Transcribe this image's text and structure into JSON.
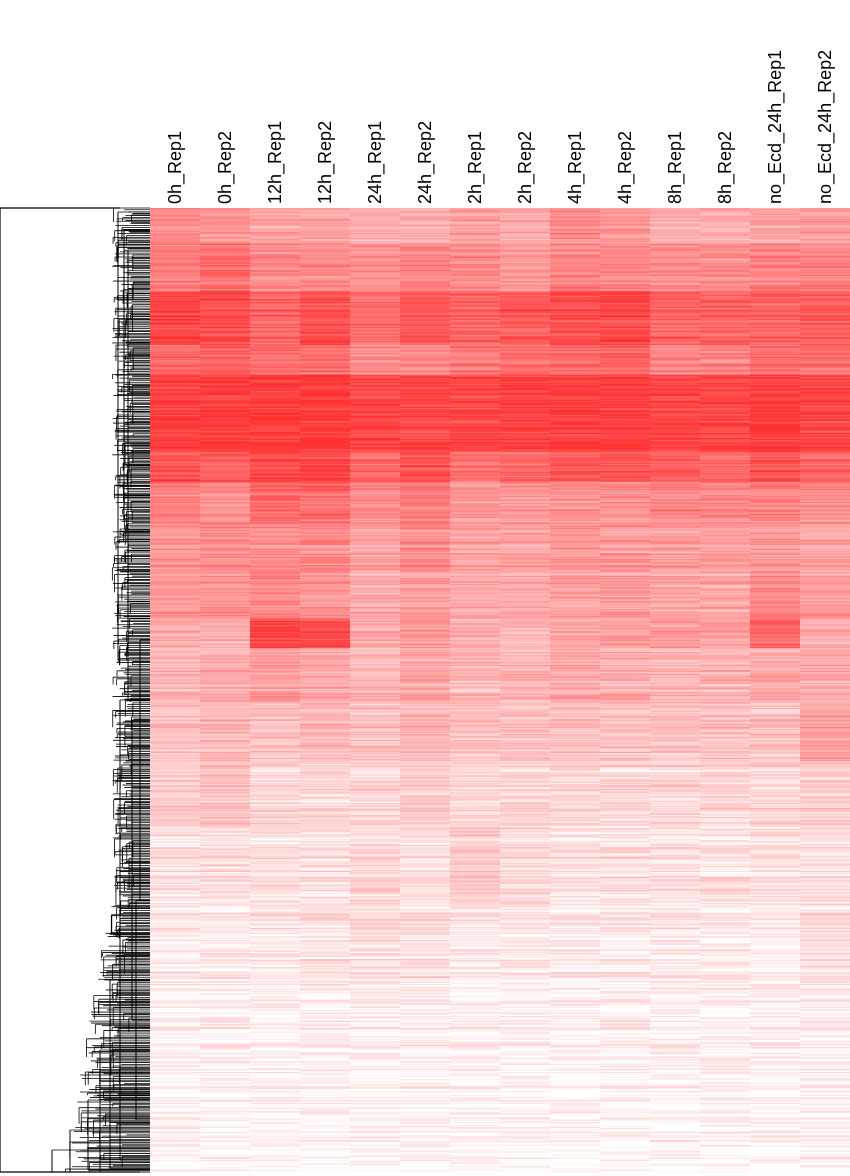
{
  "chart_data": {
    "type": "heatmap",
    "title": "",
    "xlabel": "",
    "ylabel": "",
    "columns": [
      "0h_Rep1",
      "0h_Rep2",
      "12h_Rep1",
      "12h_Rep2",
      "24h_Rep1",
      "24h_Rep2",
      "2h_Rep1",
      "2h_Rep2",
      "4h_Rep1",
      "4h_Rep2",
      "8h_Rep1",
      "8h_Rep2",
      "no_Ecd_24h_Rep1",
      "no_Ecd_24h_Rep2"
    ],
    "row_dendrogram": true,
    "column_dendrogram": false,
    "legend": "none",
    "color_scale": {
      "low": "#ffffff",
      "high": "#ff3030"
    },
    "value_range": [
      0,
      1
    ],
    "row_blocks": [
      {
        "rows": 30,
        "values": [
          0.55,
          0.5,
          0.45,
          0.45,
          0.4,
          0.4,
          0.45,
          0.4,
          0.55,
          0.5,
          0.4,
          0.4,
          0.45,
          0.5
        ]
      },
      {
        "rows": 40,
        "values": [
          0.6,
          0.7,
          0.55,
          0.55,
          0.55,
          0.6,
          0.55,
          0.5,
          0.6,
          0.6,
          0.55,
          0.55,
          0.6,
          0.6
        ]
      },
      {
        "rows": 45,
        "values": [
          0.9,
          0.85,
          0.75,
          0.85,
          0.7,
          0.8,
          0.75,
          0.8,
          0.85,
          0.9,
          0.75,
          0.75,
          0.75,
          0.8
        ]
      },
      {
        "rows": 25,
        "values": [
          0.7,
          0.75,
          0.7,
          0.7,
          0.55,
          0.6,
          0.65,
          0.7,
          0.7,
          0.75,
          0.6,
          0.6,
          0.7,
          0.7
        ]
      },
      {
        "rows": 65,
        "values": [
          0.95,
          0.95,
          0.95,
          0.95,
          0.9,
          0.9,
          0.9,
          0.9,
          0.95,
          0.95,
          0.9,
          0.9,
          0.95,
          0.9
        ]
      },
      {
        "rows": 25,
        "values": [
          0.85,
          0.8,
          0.9,
          0.9,
          0.75,
          0.85,
          0.7,
          0.75,
          0.8,
          0.85,
          0.8,
          0.75,
          0.85,
          0.75
        ]
      },
      {
        "rows": 35,
        "values": [
          0.6,
          0.55,
          0.75,
          0.7,
          0.55,
          0.65,
          0.5,
          0.5,
          0.55,
          0.55,
          0.6,
          0.6,
          0.6,
          0.55
        ]
      },
      {
        "rows": 40,
        "values": [
          0.5,
          0.55,
          0.55,
          0.55,
          0.45,
          0.55,
          0.45,
          0.45,
          0.5,
          0.5,
          0.45,
          0.45,
          0.5,
          0.45
        ]
      },
      {
        "rows": 40,
        "values": [
          0.5,
          0.5,
          0.55,
          0.5,
          0.4,
          0.45,
          0.4,
          0.4,
          0.45,
          0.45,
          0.4,
          0.4,
          0.55,
          0.45
        ]
      },
      {
        "rows": 25,
        "values": [
          0.4,
          0.4,
          0.9,
          0.85,
          0.4,
          0.5,
          0.4,
          0.35,
          0.4,
          0.45,
          0.45,
          0.45,
          0.75,
          0.4
        ]
      },
      {
        "rows": 45,
        "values": [
          0.35,
          0.4,
          0.45,
          0.4,
          0.35,
          0.4,
          0.35,
          0.35,
          0.4,
          0.4,
          0.35,
          0.35,
          0.4,
          0.4
        ]
      },
      {
        "rows": 50,
        "values": [
          0.3,
          0.35,
          0.3,
          0.35,
          0.3,
          0.35,
          0.3,
          0.3,
          0.3,
          0.3,
          0.3,
          0.3,
          0.3,
          0.45
        ]
      },
      {
        "rows": 55,
        "values": [
          0.25,
          0.3,
          0.2,
          0.2,
          0.2,
          0.25,
          0.2,
          0.2,
          0.2,
          0.2,
          0.2,
          0.2,
          0.2,
          0.25
        ]
      },
      {
        "rows": 70,
        "values": [
          0.15,
          0.15,
          0.15,
          0.15,
          0.2,
          0.15,
          0.25,
          0.2,
          0.15,
          0.15,
          0.15,
          0.15,
          0.15,
          0.15
        ]
      },
      {
        "rows": 60,
        "values": [
          0.1,
          0.1,
          0.12,
          0.15,
          0.15,
          0.15,
          0.1,
          0.1,
          0.1,
          0.1,
          0.1,
          0.1,
          0.1,
          0.15
        ]
      },
      {
        "rows": 90,
        "values": [
          0.07,
          0.07,
          0.07,
          0.07,
          0.07,
          0.08,
          0.07,
          0.07,
          0.07,
          0.07,
          0.07,
          0.07,
          0.07,
          0.08
        ]
      },
      {
        "rows": 70,
        "values": [
          0.04,
          0.04,
          0.04,
          0.04,
          0.04,
          0.04,
          0.04,
          0.04,
          0.04,
          0.04,
          0.04,
          0.04,
          0.04,
          0.04
        ]
      }
    ]
  }
}
